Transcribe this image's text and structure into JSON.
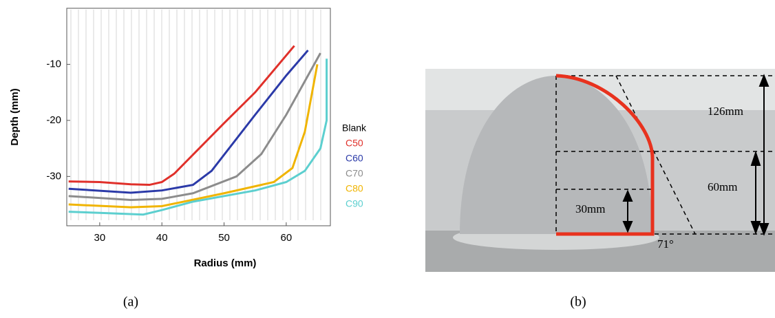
{
  "chart_data": {
    "type": "line",
    "x_label": "Radius (mm)",
    "y_label": "Depth (mm)",
    "legend_title": "Blank",
    "caption": "(a)",
    "xlim": [
      24.7,
      67.1
    ],
    "xticks": [
      30,
      40,
      50,
      60
    ],
    "ylim": [
      -38.8,
      0
    ],
    "yticks": [
      -10,
      -20,
      -30
    ],
    "series": [
      {
        "name": "C50",
        "color": "#e0302a",
        "x": [
          25,
          30,
          35,
          38,
          40,
          42,
          50,
          55,
          61.3
        ],
        "values": [
          -30.9,
          -31,
          -31.4,
          -31.5,
          -31,
          -29.5,
          -20.5,
          -15,
          -6.7
        ]
      },
      {
        "name": "C60",
        "color": "#2b3aa8",
        "x": [
          25,
          35,
          40,
          45,
          48,
          55,
          60,
          63.5
        ],
        "values": [
          -32.2,
          -32.9,
          -32.5,
          -31.5,
          -29,
          -19,
          -12,
          -7.5
        ]
      },
      {
        "name": "C70",
        "color": "#8c8c8c",
        "x": [
          25,
          35,
          40,
          45,
          52,
          56,
          60,
          63,
          65.5
        ],
        "values": [
          -33.5,
          -34.2,
          -34,
          -33,
          -30,
          -26,
          -19,
          -13,
          -8
        ]
      },
      {
        "name": "C80",
        "color": "#f0b400",
        "x": [
          25,
          35,
          40,
          50,
          58,
          61,
          63,
          65
        ],
        "values": [
          -35,
          -35.5,
          -35.3,
          -33,
          -31,
          -28.5,
          -22,
          -10
        ]
      },
      {
        "name": "C90",
        "color": "#5ccfcf",
        "x": [
          25,
          30,
          37,
          40,
          45,
          55,
          60,
          63,
          65.5,
          66.5,
          66.5
        ],
        "values": [
          -36.3,
          -36.5,
          -36.8,
          -36,
          -34.5,
          -32.5,
          -31,
          -29,
          -25,
          -20,
          -9
        ]
      }
    ]
  },
  "photo": {
    "labels": [
      "126mm",
      "60mm",
      "30mm",
      "71°"
    ],
    "caption": "(b)"
  }
}
